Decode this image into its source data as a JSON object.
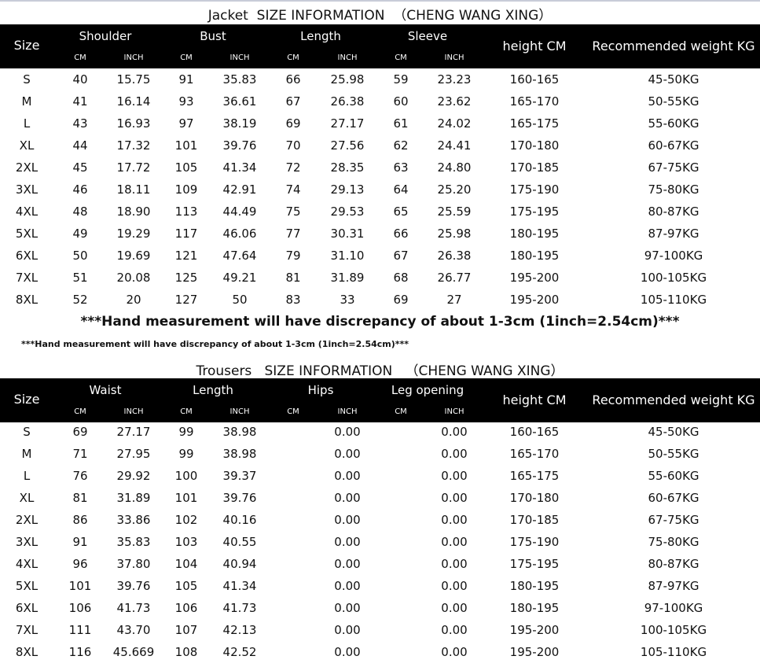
{
  "jacket": {
    "title": "Jacket  SIZE INFORMATION  （CHENG WANG XING）",
    "size_label": "Size",
    "groups": [
      "Shoulder",
      "Bust",
      "Length",
      "Sleeve"
    ],
    "units": [
      "CM",
      "INCH",
      "CM",
      "INCH",
      "CM",
      "INCH",
      "CM",
      "INCH"
    ],
    "height_label": "height  CM",
    "weight_label": "Recommended weight KG",
    "rows": [
      [
        "S",
        "40",
        "15.75",
        "91",
        "35.83",
        "66",
        "25.98",
        "59",
        "23.23",
        "160-165",
        "45-50KG"
      ],
      [
        "M",
        "41",
        "16.14",
        "93",
        "36.61",
        "67",
        "26.38",
        "60",
        "23.62",
        "165-170",
        "50-55KG"
      ],
      [
        "L",
        "43",
        "16.93",
        "97",
        "38.19",
        "69",
        "27.17",
        "61",
        "24.02",
        "165-175",
        "55-60KG"
      ],
      [
        "XL",
        "44",
        "17.32",
        "101",
        "39.76",
        "70",
        "27.56",
        "62",
        "24.41",
        "170-180",
        "60-67KG"
      ],
      [
        "2XL",
        "45",
        "17.72",
        "105",
        "41.34",
        "72",
        "28.35",
        "63",
        "24.80",
        "170-185",
        "67-75KG"
      ],
      [
        "3XL",
        "46",
        "18.11",
        "109",
        "42.91",
        "74",
        "29.13",
        "64",
        "25.20",
        "175-190",
        "75-80KG"
      ],
      [
        "4XL",
        "48",
        "18.90",
        "113",
        "44.49",
        "75",
        "29.53",
        "65",
        "25.59",
        "175-195",
        "80-87KG"
      ],
      [
        "5XL",
        "49",
        "19.29",
        "117",
        "46.06",
        "77",
        "30.31",
        "66",
        "25.98",
        "180-195",
        "87-97KG"
      ],
      [
        "6XL",
        "50",
        "19.69",
        "121",
        "47.64",
        "79",
        "31.10",
        "67",
        "26.38",
        "180-195",
        "97-100KG"
      ],
      [
        "7XL",
        "51",
        "20.08",
        "125",
        "49.21",
        "81",
        "31.89",
        "68",
        "26.77",
        "195-200",
        "100-105KG"
      ],
      [
        "8XL",
        "52",
        "20",
        "127",
        "50",
        "83",
        "33",
        "69",
        "27",
        "195-200",
        "105-110KG"
      ]
    ]
  },
  "notes": {
    "large": "***Hand measurement will have discrepancy of about 1-3cm (1inch=2.54cm)***",
    "small": "***Hand measurement will have discrepancy of about 1-3cm (1inch=2.54cm)***"
  },
  "trousers": {
    "title": "Trousers   SIZE INFORMATION   （CHENG WANG XING）",
    "size_label": "Size",
    "groups": [
      "Waist",
      "Length",
      "Hips",
      "Leg opening"
    ],
    "units": [
      "CM",
      "INCH",
      "CM",
      "INCH",
      "CM",
      "INCH",
      "CM",
      "INCH"
    ],
    "height_label": "height  CM",
    "weight_label": "Recommended weight KG",
    "rows": [
      [
        "S",
        "69",
        "27.17",
        "99",
        "38.98",
        "",
        "0.00",
        "",
        "0.00",
        "160-165",
        "45-50KG"
      ],
      [
        "M",
        "71",
        "27.95",
        "99",
        "38.98",
        "",
        "0.00",
        "",
        "0.00",
        "165-170",
        "50-55KG"
      ],
      [
        "L",
        "76",
        "29.92",
        "100",
        "39.37",
        "",
        "0.00",
        "",
        "0.00",
        "165-175",
        "55-60KG"
      ],
      [
        "XL",
        "81",
        "31.89",
        "101",
        "39.76",
        "",
        "0.00",
        "",
        "0.00",
        "170-180",
        "60-67KG"
      ],
      [
        "2XL",
        "86",
        "33.86",
        "102",
        "40.16",
        "",
        "0.00",
        "",
        "0.00",
        "170-185",
        "67-75KG"
      ],
      [
        "3XL",
        "91",
        "35.83",
        "103",
        "40.55",
        "",
        "0.00",
        "",
        "0.00",
        "175-190",
        "75-80KG"
      ],
      [
        "4XL",
        "96",
        "37.80",
        "104",
        "40.94",
        "",
        "0.00",
        "",
        "0.00",
        "175-195",
        "80-87KG"
      ],
      [
        "5XL",
        "101",
        "39.76",
        "105",
        "41.34",
        "",
        "0.00",
        "",
        "0.00",
        "180-195",
        "87-97KG"
      ],
      [
        "6XL",
        "106",
        "41.73",
        "106",
        "41.73",
        "",
        "0.00",
        "",
        "0.00",
        "180-195",
        "97-100KG"
      ],
      [
        "7XL",
        "111",
        "43.70",
        "107",
        "42.13",
        "",
        "0.00",
        "",
        "0.00",
        "195-200",
        "100-105KG"
      ],
      [
        "8XL",
        "116",
        "45.669",
        "108",
        "42.52",
        "",
        "0.00",
        "",
        "0.00",
        "195-200",
        "105-110KG"
      ]
    ]
  }
}
